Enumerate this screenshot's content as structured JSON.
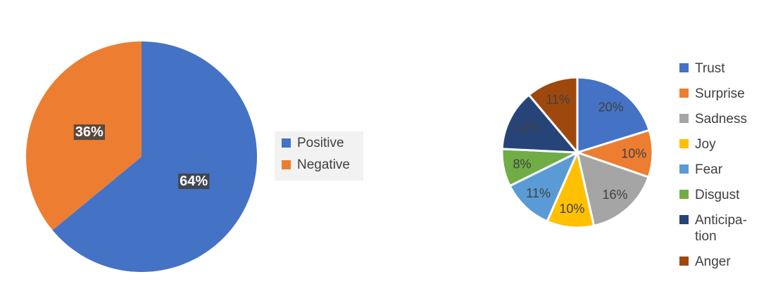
{
  "chart_data": [
    {
      "type": "pie",
      "categories": [
        "Positive",
        "Negative"
      ],
      "values": [
        64,
        36
      ],
      "value_labels": [
        "64%",
        "36%"
      ],
      "colors": [
        "#4472c4",
        "#ed7d31"
      ]
    },
    {
      "type": "pie",
      "categories": [
        "Trust",
        "Surprise",
        "Sadness",
        "Joy",
        "Fear",
        "Disgust",
        "Anticipa-tion",
        "Anger"
      ],
      "values": [
        20,
        10,
        16,
        10,
        11,
        8,
        13,
        11
      ],
      "value_labels": [
        "20%",
        "10%",
        "16%",
        "10%",
        "11%",
        "8%",
        "13%",
        "11%"
      ],
      "colors": [
        "#4472c4",
        "#ed7d31",
        "#a5a5a5",
        "#ffc000",
        "#5b9bd5",
        "#70ad47",
        "#264478",
        "#9e480e"
      ]
    }
  ]
}
